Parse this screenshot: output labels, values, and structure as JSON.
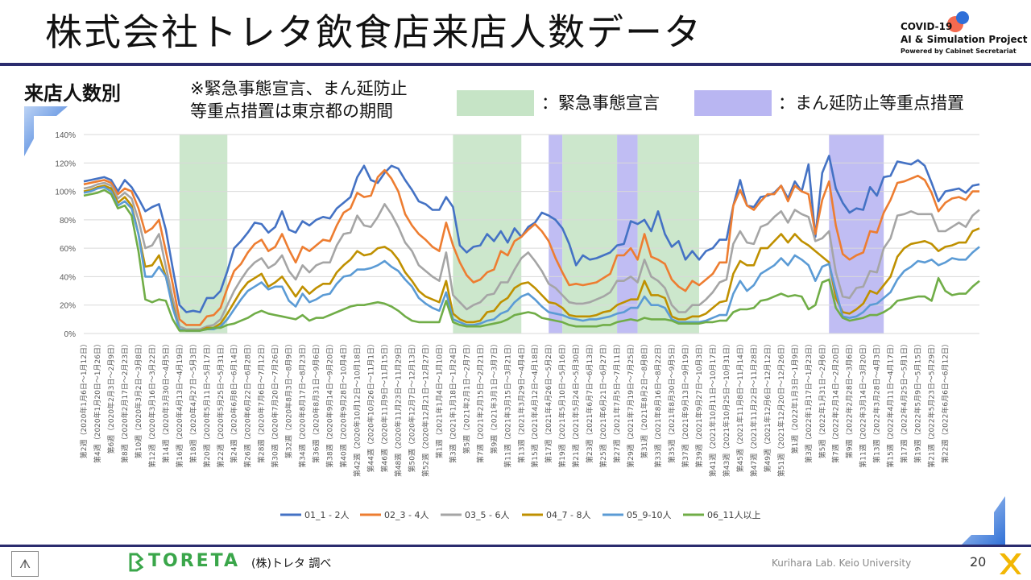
{
  "slide": {
    "title": "株式会社トレタ飲食店来店人数データ",
    "subtitle": "来店人数別",
    "note_line1": "※緊急事態宣言、まん延防止",
    "note_line2": "等重点措置は東京都の期間",
    "legend_emergency": "：緊急事態宣言",
    "legend_manen": "：まん延防止等重点措置",
    "logo_line1": "COVID-19",
    "logo_line2": "AI & Simulation Project",
    "logo_line3": "Powered by Cabinet Secretariat",
    "company_logo": "TORETA",
    "source": "(株)トレタ 調べ",
    "university": "Kurihara Lab. Keio University",
    "page_number": "20",
    "emergency_color": "#c6e4c6",
    "manen_color": "#b9b6f2"
  },
  "chart_data": {
    "type": "line",
    "ylim": [
      0,
      140
    ],
    "yticks": [
      "0%",
      "20%",
      "40%",
      "60%",
      "80%",
      "100%",
      "120%",
      "140%"
    ],
    "xlabels": [
      "第2週（2020年1月6日～1月12日）",
      "第4週（2020年1月20日～1月26日）",
      "第6週（2020年2月3日～2月9日）",
      "第8週（2020年2月17日～2月23日）",
      "第10週（2020年3月2日～3月8日）",
      "第12週（2020年3月16日～3月22日）",
      "第14週（2020年3月30日～4月5日）",
      "第16週（2020年4月13日～4月19日）",
      "第18週（2020年4月27日～5月3日）",
      "第20週（2020年5月11日～5月17日）",
      "第22週（2020年5月25日～5月31日）",
      "第24週（2020年6月8日～6月14日）",
      "第26週（2020年6月22日～6月28日）",
      "第28週（2020年7月6日～7月12日）",
      "第30週（2020年7月20日～7月26日）",
      "第32週（2020年8月3日～8月9日）",
      "第34週（2020年8月17日～8月23日）",
      "第36週（2020年8月31日～9月6日）",
      "第38週（2020年9月14日～9月20日）",
      "第40週（2020年9月28日～10月4日）",
      "第42週（2020年10月12日～10月18日）",
      "第44週（2020年10月26日～11月1日）",
      "第46週（2020年11月9日～11月15日）",
      "第48週（2020年11月23日～11月29日）",
      "第50週（2020年12月7日～12月13日）",
      "第52週（2020年12月21日～12月27日）",
      "第1週（2021年1月4日～1月10日）",
      "第3週（2021年1月18日～1月24日）",
      "第5週（2021年2月1日～2月7日）",
      "第7週（2021年2月15日～2月21日）",
      "第9週（2021年3月1日～3月7日）",
      "第11週（2021年3月15日～3月21日）",
      "第13週（2021年3月29日～4月4日）",
      "第15週（2021年4月12日～4月18日）",
      "第17週（2021年4月26日～5月2日）",
      "第19週（2021年5月10日～5月16日）",
      "第21週（2021年5月24日～5月30日）",
      "第23週（2021年6月7日～6月13日）",
      "第25週（2021年6月21日～6月27日）",
      "第27週（2021年7月5日～7月11日）",
      "第29週（2021年7月19日～7月25日）",
      "第31週（2021年8月2日～8月8日）",
      "第33週（2021年8月16日～8月22日）",
      "第35週（2021年8月30日～9月5日）",
      "第37週（2021年9月13日～9月19日）",
      "第39週（2021年9月27日～10月3日）",
      "第41週（2021年10月11日～10月17日）",
      "第43週（2021年10月25日～10月31日）",
      "第45週（2021年11月8日～11月14日）",
      "第47週（2021年11月22日～11月28日）",
      "第49週（2021年12月6日～12月12日）",
      "第51週（2021年12月20日～12月26日）",
      "第1週（2022年1月3日～1月9日）",
      "第3週（2022年1月17日～1月23日）",
      "第5週（2022年1月31日～2月6日）",
      "第7週（2022年2月14日～2月20日）",
      "第9週（2022年2月28日～3月6日）",
      "第11週（2022年3月14日～3月20日）",
      "第13週（2022年3月28日～4月3日）",
      "第15週（2022年4月11日～4月17日）",
      "第17週（2022年4月25日～5月1日）",
      "第19週（2022年5月9日～5月15日）",
      "第21週（2022年5月23日～5月29日）",
      "第22週（2022年6月6日～6月12日）"
    ],
    "shaded": [
      {
        "type": "emergency",
        "from": 14,
        "to": 21
      },
      {
        "type": "emergency",
        "from": 54,
        "to": 64
      },
      {
        "type": "manen",
        "from": 68,
        "to": 70
      },
      {
        "type": "emergency",
        "from": 70,
        "to": 78
      },
      {
        "type": "manen",
        "from": 78,
        "to": 81
      },
      {
        "type": "emergency",
        "from": 81,
        "to": 90
      },
      {
        "type": "manen",
        "from": 109,
        "to": 117
      }
    ],
    "series": [
      {
        "name": "01_1 - 2人",
        "color": "#4472c4",
        "values": [
          107,
          108,
          109,
          110,
          108,
          100,
          108,
          103,
          95,
          86,
          89,
          91,
          73,
          46,
          20,
          15,
          16,
          15,
          25,
          25,
          30,
          44,
          60,
          65,
          71,
          78,
          77,
          71,
          75,
          86,
          73,
          71,
          79,
          76,
          80,
          82,
          81,
          88,
          92,
          96,
          110,
          118,
          108,
          106,
          113,
          118,
          116,
          108,
          101,
          93,
          91,
          87,
          87,
          96,
          89,
          62,
          57,
          61,
          62,
          70,
          65,
          72,
          64,
          74,
          68,
          75,
          78,
          85,
          83,
          80,
          74,
          63,
          48,
          55,
          52,
          53,
          55,
          57,
          62,
          63,
          79,
          77,
          80,
          72,
          86,
          70,
          61,
          65,
          52,
          58,
          52,
          58,
          60,
          66,
          66,
          90,
          108,
          90,
          89,
          96,
          97,
          99,
          104,
          95,
          107,
          100,
          119,
          68,
          113,
          125,
          102,
          92,
          85,
          88,
          87,
          103,
          97,
          110,
          111,
          121,
          120,
          119,
          122,
          118,
          106,
          93,
          100,
          101,
          102,
          99,
          104,
          105
        ]
      },
      {
        "name": "02_3 - 4人",
        "color": "#ed7d31",
        "values": [
          105,
          106,
          107,
          108,
          106,
          98,
          102,
          100,
          88,
          71,
          74,
          80,
          58,
          35,
          10,
          6,
          6,
          6,
          12,
          13,
          18,
          32,
          44,
          49,
          57,
          63,
          66,
          58,
          61,
          70,
          59,
          50,
          61,
          58,
          62,
          66,
          65,
          76,
          85,
          88,
          99,
          96,
          97,
          110,
          115,
          109,
          100,
          84,
          76,
          70,
          66,
          61,
          58,
          78,
          62,
          50,
          41,
          36,
          38,
          43,
          45,
          58,
          55,
          65,
          68,
          73,
          77,
          72,
          65,
          53,
          43,
          34,
          35,
          34,
          35,
          36,
          39,
          42,
          55,
          55,
          60,
          52,
          70,
          54,
          52,
          49,
          38,
          33,
          30,
          37,
          34,
          38,
          42,
          50,
          50,
          90,
          101,
          90,
          87,
          93,
          98,
          98,
          104,
          93,
          104,
          100,
          98,
          70,
          94,
          107,
          76,
          56,
          52,
          55,
          57,
          72,
          71,
          85,
          94,
          106,
          107,
          109,
          111,
          108,
          99,
          86,
          92,
          95,
          96,
          94,
          100,
          100
        ]
      },
      {
        "name": "03_5 - 6人",
        "color": "#a5a5a5",
        "values": [
          102,
          103,
          105,
          106,
          104,
          95,
          99,
          95,
          80,
          60,
          62,
          70,
          47,
          25,
          5,
          3,
          3,
          3,
          5,
          6,
          10,
          20,
          30,
          38,
          45,
          50,
          53,
          46,
          49,
          55,
          44,
          38,
          48,
          43,
          48,
          50,
          50,
          62,
          70,
          71,
          83,
          76,
          75,
          82,
          91,
          84,
          75,
          64,
          58,
          48,
          44,
          40,
          37,
          57,
          27,
          22,
          17,
          20,
          22,
          27,
          28,
          36,
          36,
          45,
          53,
          57,
          51,
          44,
          35,
          32,
          27,
          22,
          21,
          21,
          22,
          24,
          26,
          29,
          37,
          37,
          40,
          36,
          52,
          40,
          37,
          32,
          20,
          15,
          15,
          20,
          20,
          24,
          29,
          36,
          38,
          63,
          72,
          64,
          63,
          75,
          77,
          82,
          86,
          78,
          87,
          84,
          82,
          65,
          67,
          72,
          43,
          26,
          25,
          32,
          33,
          44,
          43,
          60,
          67,
          83,
          84,
          86,
          84,
          84,
          84,
          72,
          72,
          75,
          78,
          75,
          83,
          87
        ]
      },
      {
        "name": "04_7 - 8人",
        "color": "#bf9000",
        "values": [
          100,
          101,
          103,
          104,
          102,
          92,
          96,
          90,
          70,
          47,
          48,
          55,
          40,
          20,
          3,
          2,
          2,
          2,
          4,
          4,
          7,
          14,
          22,
          30,
          36,
          39,
          42,
          33,
          36,
          40,
          33,
          26,
          33,
          28,
          32,
          35,
          35,
          43,
          48,
          52,
          58,
          55,
          56,
          60,
          61,
          58,
          52,
          43,
          37,
          30,
          26,
          24,
          22,
          37,
          14,
          10,
          8,
          8,
          9,
          15,
          16,
          22,
          25,
          32,
          35,
          36,
          32,
          27,
          22,
          21,
          18,
          13,
          12,
          12,
          12,
          13,
          15,
          16,
          20,
          22,
          24,
          24,
          37,
          27,
          27,
          25,
          12,
          10,
          10,
          12,
          12,
          14,
          18,
          22,
          23,
          42,
          51,
          48,
          48,
          60,
          60,
          65,
          70,
          64,
          70,
          65,
          62,
          58,
          54,
          50,
          25,
          15,
          14,
          17,
          21,
          30,
          28,
          34,
          40,
          54,
          60,
          63,
          64,
          65,
          63,
          58,
          61,
          62,
          64,
          64,
          72,
          74
        ]
      },
      {
        "name": "05_9-10人",
        "color": "#5b9bd5",
        "values": [
          99,
          100,
          102,
          103,
          100,
          90,
          93,
          88,
          70,
          40,
          40,
          47,
          40,
          18,
          3,
          2,
          2,
          2,
          3,
          3,
          5,
          10,
          17,
          24,
          30,
          33,
          36,
          31,
          33,
          33,
          23,
          19,
          28,
          22,
          24,
          27,
          28,
          35,
          40,
          41,
          45,
          45,
          46,
          48,
          51,
          47,
          44,
          38,
          33,
          25,
          21,
          18,
          16,
          29,
          10,
          8,
          6,
          6,
          7,
          9,
          10,
          14,
          16,
          22,
          26,
          28,
          24,
          19,
          15,
          14,
          13,
          11,
          10,
          9,
          10,
          10,
          11,
          12,
          14,
          15,
          18,
          18,
          26,
          20,
          20,
          18,
          10,
          8,
          8,
          8,
          8,
          9,
          11,
          13,
          13,
          28,
          37,
          30,
          34,
          42,
          45,
          48,
          53,
          48,
          55,
          52,
          48,
          37,
          47,
          49,
          30,
          12,
          11,
          12,
          15,
          20,
          21,
          25,
          29,
          38,
          44,
          47,
          51,
          50,
          52,
          48,
          50,
          53,
          52,
          52,
          57,
          61
        ]
      },
      {
        "name": "06_11人以上",
        "color": "#70ad47",
        "values": [
          97,
          98,
          99,
          101,
          98,
          88,
          90,
          83,
          58,
          24,
          22,
          24,
          23,
          10,
          2,
          2,
          2,
          2,
          3,
          4,
          4,
          6,
          7,
          9,
          11,
          14,
          16,
          14,
          13,
          12,
          11,
          10,
          13,
          9,
          11,
          11,
          13,
          15,
          17,
          19,
          20,
          20,
          21,
          22,
          21,
          19,
          16,
          12,
          9,
          8,
          8,
          8,
          8,
          23,
          8,
          6,
          5,
          5,
          5,
          6,
          7,
          8,
          10,
          13,
          14,
          15,
          14,
          11,
          10,
          9,
          8,
          6,
          5,
          5,
          5,
          5,
          6,
          6,
          8,
          9,
          10,
          9,
          11,
          10,
          10,
          10,
          9,
          7,
          7,
          7,
          7,
          8,
          8,
          9,
          9,
          15,
          17,
          17,
          18,
          23,
          24,
          26,
          28,
          26,
          27,
          26,
          17,
          20,
          36,
          38,
          18,
          11,
          9,
          10,
          11,
          13,
          13,
          15,
          18,
          23,
          24,
          25,
          26,
          26,
          23,
          39,
          30,
          27,
          28,
          28,
          33,
          37
        ]
      }
    ]
  }
}
